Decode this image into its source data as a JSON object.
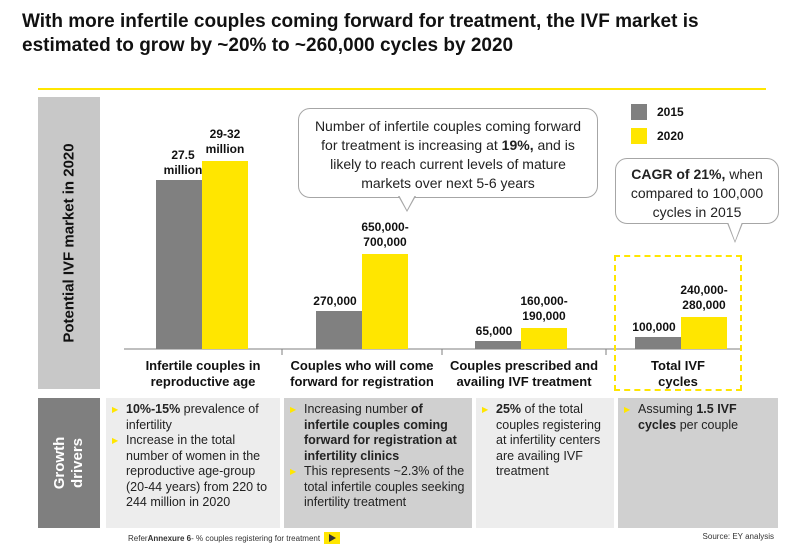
{
  "title": "With more infertile couples coming forward for treatment, the IVF market is estimated to grow by ~20% to ~260,000 cycles by 2020",
  "side_labels": {
    "chart": "Potential IVF market in 2020",
    "drivers_line1": "Growth",
    "drivers_line2": "drivers"
  },
  "colors": {
    "series_2015": "#808080",
    "series_2020": "#ffe600",
    "accent": "#ffe600"
  },
  "chart_data": {
    "type": "bar",
    "categories": [
      "Infertile couples in reproductive age",
      "Couples who will come forward for registration",
      "Couples prescribed and availing IVF treatment",
      "Total IVF cycles"
    ],
    "series": [
      {
        "name": "2015",
        "values": [
          27.5,
          270000,
          65000,
          100000
        ],
        "labels": [
          "27.5 million",
          "270,000",
          "65,000",
          "100,000"
        ]
      },
      {
        "name": "2020",
        "values": [
          30.5,
          675000,
          175000,
          260000
        ],
        "labels": [
          "29-32 million",
          "650,000-700,000",
          "160,000-190,000",
          "240,000-280,000"
        ]
      }
    ],
    "legend": [
      "2015",
      "2020"
    ],
    "legend_position": "top-right"
  },
  "bar_labels": {
    "b0_2015_l1": "27.5",
    "b0_2015_l2": "million",
    "b0_2020_l1": "29-32",
    "b0_2020_l2": "million",
    "b1_2015": "270,000",
    "b1_2020_l1": "650,000-",
    "b1_2020_l2": "700,000",
    "b2_2015": "65,000",
    "b2_2020_l1": "160,000-",
    "b2_2020_l2": "190,000",
    "b3_2015": "100,000",
    "b3_2020_l1": "240,000-",
    "b3_2020_l2": "280,000"
  },
  "category_labels": {
    "c0_l1": "Infertile couples in",
    "c0_l2": "reproductive age",
    "c1_l1": "Couples who will come",
    "c1_l2": "forward for registration",
    "c2_l1": "Couples prescribed and",
    "c2_l2": "availing IVF treatment",
    "c3_l1": "Total IVF",
    "c3_l2": "cycles"
  },
  "callouts": {
    "c1_pre": "Number of infertile couples coming forward for treatment is increasing at ",
    "c1_bold": "19%,",
    "c1_post": " and is likely to reach current levels of mature markets over next 5-6 years",
    "c2_bold": "CAGR of 21%,",
    "c2_post": " when compared to 100,000 cycles in 2015"
  },
  "drivers": {
    "col0": {
      "i1_bold": "10%-15%",
      "i1_rest": " prevalence of infertility",
      "i2": "Increase in the total number of women in the reproductive age-group (20-44 years) from 220 to 244 million in 2020"
    },
    "col1": {
      "i1_pre": "Increasing number ",
      "i1_bold": "of infertile couples coming forward for registration at infertility clinics",
      "i2": "This represents ~2.3% of the total infertile couples seeking infertility treatment"
    },
    "col2": {
      "i1_bold": "25%",
      "i1_rest": " of the total couples registering at infertility centers are availing IVF treatment"
    },
    "col3": {
      "i1_pre": "Assuming ",
      "i1_bold": "1.5 IVF cycles",
      "i1_post": " per couple"
    }
  },
  "footer": {
    "left_pre": "Refer ",
    "left_bold": "Annexure 6",
    "left_post": " - % couples registering for treatment",
    "right": "Source: EY analysis"
  }
}
